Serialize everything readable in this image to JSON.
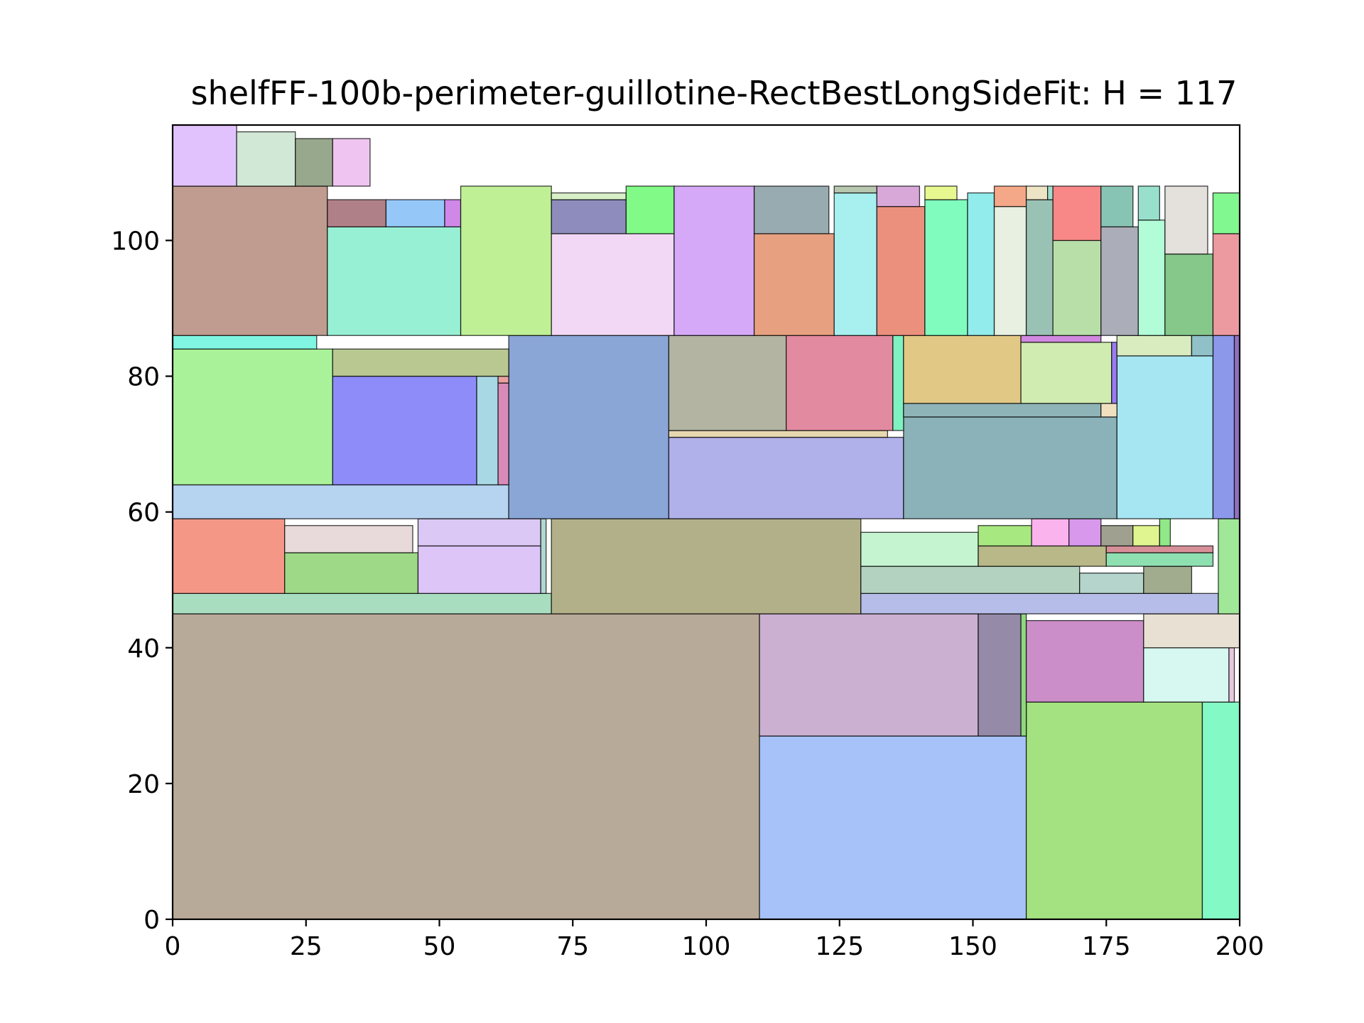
{
  "chart_data": {
    "type": "rectangle-packing",
    "title": "shelfFF-100b-perimeter-guillotine-RectBestLongSideFit: H = 117",
    "xlim": [
      0,
      200
    ],
    "ylim": [
      0,
      117
    ],
    "xticks": [
      0,
      25,
      50,
      75,
      100,
      125,
      150,
      175,
      200
    ],
    "yticks": [
      0,
      20,
      40,
      60,
      80,
      100
    ],
    "rects": [
      {
        "x": 0,
        "y": 0,
        "w": 110,
        "h": 45,
        "color": "#b8aa98"
      },
      {
        "x": 110,
        "y": 0,
        "w": 50,
        "h": 27,
        "color": "#a7c2f8"
      },
      {
        "x": 160,
        "y": 0,
        "w": 33,
        "h": 32,
        "color": "#a4e180"
      },
      {
        "x": 193,
        "y": 0,
        "w": 7,
        "h": 32,
        "color": "#83f9c5"
      },
      {
        "x": 110,
        "y": 27,
        "w": 41,
        "h": 18,
        "color": "#cbb0d2"
      },
      {
        "x": 151,
        "y": 27,
        "w": 8,
        "h": 18,
        "color": "#958aa8"
      },
      {
        "x": 159,
        "y": 27,
        "w": 1,
        "h": 18,
        "color": "#8fd880"
      },
      {
        "x": 160,
        "y": 32,
        "w": 22,
        "h": 12,
        "color": "#cc8ec8"
      },
      {
        "x": 182,
        "y": 32,
        "w": 16,
        "h": 8,
        "color": "#d6f8f0"
      },
      {
        "x": 198,
        "y": 32,
        "w": 1,
        "h": 8,
        "color": "#e8c8e0"
      },
      {
        "x": 182,
        "y": 40,
        "w": 18,
        "h": 5,
        "color": "#e8e0d2"
      },
      {
        "x": 0,
        "y": 45,
        "w": 71,
        "h": 3,
        "color": "#a8ddc0"
      },
      {
        "x": 71,
        "y": 45,
        "w": 58,
        "h": 14,
        "color": "#b2b088"
      },
      {
        "x": 129,
        "y": 45,
        "w": 67,
        "h": 3,
        "color": "#b6bde8"
      },
      {
        "x": 196,
        "y": 45,
        "w": 4,
        "h": 14,
        "color": "#a0e898"
      },
      {
        "x": 0,
        "y": 48,
        "w": 21,
        "h": 11,
        "color": "#f59787"
      },
      {
        "x": 21,
        "y": 48,
        "w": 25,
        "h": 6,
        "color": "#9dd987"
      },
      {
        "x": 21,
        "y": 54,
        "w": 24,
        "h": 4,
        "color": "#e8dada"
      },
      {
        "x": 46,
        "y": 48,
        "w": 23,
        "h": 7,
        "color": "#ddc5f8"
      },
      {
        "x": 46,
        "y": 55,
        "w": 23,
        "h": 4,
        "color": "#dcc8f4"
      },
      {
        "x": 69,
        "y": 48,
        "w": 1,
        "h": 11,
        "color": "#b0d8d0"
      },
      {
        "x": 129,
        "y": 48,
        "w": 41,
        "h": 4,
        "color": "#b4d2c0"
      },
      {
        "x": 170,
        "y": 48,
        "w": 12,
        "h": 3,
        "color": "#b4d4cc"
      },
      {
        "x": 182,
        "y": 48,
        "w": 9,
        "h": 4,
        "color": "#a1ac8e"
      },
      {
        "x": 129,
        "y": 52,
        "w": 22,
        "h": 5,
        "color": "#c4f4d0"
      },
      {
        "x": 151,
        "y": 52,
        "w": 24,
        "h": 3,
        "color": "#b8b888"
      },
      {
        "x": 175,
        "y": 52,
        "w": 20,
        "h": 2,
        "color": "#8fe0b0"
      },
      {
        "x": 175,
        "y": 54,
        "w": 20,
        "h": 1,
        "color": "#d89098"
      },
      {
        "x": 151,
        "y": 55,
        "w": 10,
        "h": 3,
        "color": "#a8e880"
      },
      {
        "x": 161,
        "y": 55,
        "w": 7,
        "h": 4,
        "color": "#fbb3ed"
      },
      {
        "x": 168,
        "y": 55,
        "w": 6,
        "h": 4,
        "color": "#d898ec"
      },
      {
        "x": 174,
        "y": 55,
        "w": 6,
        "h": 3,
        "color": "#a0a090"
      },
      {
        "x": 180,
        "y": 55,
        "w": 5,
        "h": 3,
        "color": "#e0f490"
      },
      {
        "x": 185,
        "y": 55,
        "w": 2,
        "h": 4,
        "color": "#90e888"
      },
      {
        "x": 0,
        "y": 59,
        "w": 63,
        "h": 5,
        "color": "#b6d3f0"
      },
      {
        "x": 63,
        "y": 59,
        "w": 30,
        "h": 27,
        "color": "#8aa6d6"
      },
      {
        "x": 93,
        "y": 59,
        "w": 44,
        "h": 12,
        "color": "#b0b0ea"
      },
      {
        "x": 137,
        "y": 59,
        "w": 40,
        "h": 15,
        "color": "#8ab2b8"
      },
      {
        "x": 177,
        "y": 59,
        "w": 18,
        "h": 24,
        "color": "#a6e6f2"
      },
      {
        "x": 195,
        "y": 59,
        "w": 4,
        "h": 27,
        "color": "#8c98ea"
      },
      {
        "x": 199,
        "y": 59,
        "w": 1,
        "h": 27,
        "color": "#9070c0"
      },
      {
        "x": 0,
        "y": 64,
        "w": 30,
        "h": 20,
        "color": "#aaf29a"
      },
      {
        "x": 30,
        "y": 64,
        "w": 27,
        "h": 16,
        "color": "#8e8cf8"
      },
      {
        "x": 57,
        "y": 64,
        "w": 4,
        "h": 16,
        "color": "#a8d8e4"
      },
      {
        "x": 61,
        "y": 64,
        "w": 2,
        "h": 15,
        "color": "#d88ab8"
      },
      {
        "x": 61,
        "y": 79,
        "w": 2,
        "h": 1,
        "color": "#e8a0a0"
      },
      {
        "x": 30,
        "y": 80,
        "w": 33,
        "h": 4,
        "color": "#b9c891"
      },
      {
        "x": 0,
        "y": 84,
        "w": 27,
        "h": 2,
        "color": "#7ff5e2"
      },
      {
        "x": 93,
        "y": 71,
        "w": 41,
        "h": 1,
        "color": "#e8d8b0"
      },
      {
        "x": 93,
        "y": 72,
        "w": 22,
        "h": 14,
        "color": "#b3b5a2"
      },
      {
        "x": 115,
        "y": 72,
        "w": 20,
        "h": 14,
        "color": "#e28aa0"
      },
      {
        "x": 135,
        "y": 72,
        "w": 2,
        "h": 14,
        "color": "#7ef2c0"
      },
      {
        "x": 137,
        "y": 74,
        "w": 37,
        "h": 2,
        "color": "#8fb4b8"
      },
      {
        "x": 174,
        "y": 74,
        "w": 3,
        "h": 2,
        "color": "#f0e0c0"
      },
      {
        "x": 137,
        "y": 76,
        "w": 22,
        "h": 10,
        "color": "#e2c885"
      },
      {
        "x": 159,
        "y": 76,
        "w": 17,
        "h": 9,
        "color": "#d0ecb0"
      },
      {
        "x": 176,
        "y": 76,
        "w": 1,
        "h": 9,
        "color": "#9a7cf0"
      },
      {
        "x": 159,
        "y": 85,
        "w": 15,
        "h": 1,
        "color": "#d088e0"
      },
      {
        "x": 177,
        "y": 83,
        "w": 14,
        "h": 3,
        "color": "#d8ecc0"
      },
      {
        "x": 191,
        "y": 83,
        "w": 4,
        "h": 3,
        "color": "#90c0c8"
      },
      {
        "x": 0,
        "y": 86,
        "w": 29,
        "h": 22,
        "color": "#bf9c8f"
      },
      {
        "x": 29,
        "y": 86,
        "w": 25,
        "h": 16,
        "color": "#98f0d4"
      },
      {
        "x": 29,
        "y": 102,
        "w": 11,
        "h": 4,
        "color": "#b08088"
      },
      {
        "x": 40,
        "y": 102,
        "w": 11,
        "h": 4,
        "color": "#95c7f8"
      },
      {
        "x": 51,
        "y": 102,
        "w": 3,
        "h": 4,
        "color": "#d088e8"
      },
      {
        "x": 54,
        "y": 86,
        "w": 17,
        "h": 22,
        "color": "#c0f095"
      },
      {
        "x": 71,
        "y": 86,
        "w": 23,
        "h": 15,
        "color": "#f2d8f4"
      },
      {
        "x": 71,
        "y": 101,
        "w": 14,
        "h": 5,
        "color": "#8e8cbc"
      },
      {
        "x": 71,
        "y": 106,
        "w": 14,
        "h": 1,
        "color": "#d8f0c8"
      },
      {
        "x": 85,
        "y": 101,
        "w": 9,
        "h": 7,
        "color": "#82fa87"
      },
      {
        "x": 94,
        "y": 86,
        "w": 15,
        "h": 22,
        "color": "#d5a9f8"
      },
      {
        "x": 109,
        "y": 86,
        "w": 15,
        "h": 15,
        "color": "#e8a180"
      },
      {
        "x": 109,
        "y": 101,
        "w": 14,
        "h": 7,
        "color": "#98abb0"
      },
      {
        "x": 124,
        "y": 86,
        "w": 8,
        "h": 21,
        "color": "#a8f0f0"
      },
      {
        "x": 124,
        "y": 107,
        "w": 8,
        "h": 1,
        "color": "#b8c8b0"
      },
      {
        "x": 132,
        "y": 86,
        "w": 9,
        "h": 19,
        "color": "#ec907e"
      },
      {
        "x": 132,
        "y": 105,
        "w": 8,
        "h": 3,
        "color": "#d8a8d8"
      },
      {
        "x": 141,
        "y": 86,
        "w": 8,
        "h": 20,
        "color": "#80fcbf"
      },
      {
        "x": 141,
        "y": 106,
        "w": 6,
        "h": 2,
        "color": "#e8f890"
      },
      {
        "x": 149,
        "y": 86,
        "w": 5,
        "h": 21,
        "color": "#92ecec"
      },
      {
        "x": 154,
        "y": 86,
        "w": 6,
        "h": 19,
        "color": "#e8f0e2"
      },
      {
        "x": 154,
        "y": 105,
        "w": 6,
        "h": 3,
        "color": "#f4a888"
      },
      {
        "x": 160,
        "y": 86,
        "w": 5,
        "h": 20,
        "color": "#9ac2b4"
      },
      {
        "x": 160,
        "y": 106,
        "w": 4,
        "h": 2,
        "color": "#ece4c4"
      },
      {
        "x": 164,
        "y": 106,
        "w": 1,
        "h": 2,
        "color": "#a0e0d0"
      },
      {
        "x": 165,
        "y": 86,
        "w": 9,
        "h": 14,
        "color": "#b8dfa8"
      },
      {
        "x": 165,
        "y": 100,
        "w": 9,
        "h": 8,
        "color": "#f88888"
      },
      {
        "x": 174,
        "y": 86,
        "w": 7,
        "h": 16,
        "color": "#abadb8"
      },
      {
        "x": 174,
        "y": 102,
        "w": 6,
        "h": 6,
        "color": "#88c4b4"
      },
      {
        "x": 181,
        "y": 86,
        "w": 5,
        "h": 17,
        "color": "#b2fcd8"
      },
      {
        "x": 181,
        "y": 103,
        "w": 4,
        "h": 5,
        "color": "#98e0cc"
      },
      {
        "x": 186,
        "y": 86,
        "w": 9,
        "h": 12,
        "color": "#86c88a"
      },
      {
        "x": 186,
        "y": 98,
        "w": 8,
        "h": 10,
        "color": "#e4e0dc"
      },
      {
        "x": 195,
        "y": 86,
        "w": 5,
        "h": 15,
        "color": "#ec9aa0"
      },
      {
        "x": 195,
        "y": 101,
        "w": 5,
        "h": 6,
        "color": "#82f890"
      },
      {
        "x": 0,
        "y": 108,
        "w": 12,
        "h": 9,
        "color": "#e2c2fc"
      },
      {
        "x": 12,
        "y": 108,
        "w": 11,
        "h": 8,
        "color": "#d2e8d6"
      },
      {
        "x": 23,
        "y": 108,
        "w": 7,
        "h": 7,
        "color": "#98a88c"
      },
      {
        "x": 30,
        "y": 108,
        "w": 7,
        "h": 7,
        "color": "#f0c4f0"
      }
    ]
  }
}
